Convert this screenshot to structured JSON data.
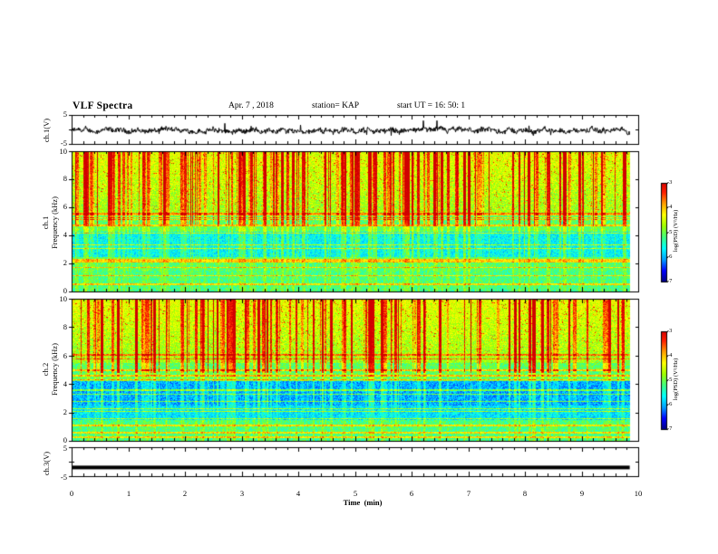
{
  "header": {
    "title": "VLF Spectra",
    "date": "Apr. 7 , 2018",
    "station": "station= KAP",
    "start_ut": "start  UT =   16: 50: 1"
  },
  "chart_data": [
    {
      "type": "line",
      "name": "ch.1 waveform",
      "ylabel": "ch.1(V)",
      "ylim": [
        -5,
        5
      ],
      "yticks": [
        "5",
        "-5"
      ],
      "xlim": [
        0,
        10
      ],
      "x_end": 9.85,
      "baseline": -0.4,
      "amplitude": 1.4
    },
    {
      "type": "heatmap",
      "name": "ch.1 spectrogram",
      "ylabel_line1": "ch.1",
      "ylabel_line2": "Frequency (kHz)",
      "ylim": [
        0,
        10
      ],
      "yticks": [
        "0",
        "2",
        "4",
        "6",
        "8",
        "10"
      ],
      "xlim": [
        0,
        9.85
      ],
      "colorbar": {
        "label": "log(PSD) (V²/Hz)",
        "range": [
          -7,
          -3
        ],
        "ticks": [
          "-3",
          "-4",
          "-5",
          "-6",
          "-7"
        ]
      },
      "colormap": [
        "#000080",
        "#0000ff",
        "#00a0ff",
        "#00ffff",
        "#40ff80",
        "#a0ff00",
        "#ffff00",
        "#ffa000",
        "#ff2000",
        "#d00000",
        "#ffffff"
      ]
    },
    {
      "type": "heatmap",
      "name": "ch.2 spectrogram",
      "ylabel_line1": "ch.2",
      "ylabel_line2": "Frequency (kHz)",
      "ylim": [
        0,
        10
      ],
      "yticks": [
        "0",
        "2",
        "4",
        "6",
        "8",
        "10"
      ],
      "xlim": [
        0,
        9.85
      ],
      "colorbar": {
        "label": "log(PSD) (V²/Hz)",
        "range": [
          -7,
          -3
        ],
        "ticks": [
          "-3",
          "-4",
          "-5",
          "-6",
          "-7"
        ]
      }
    },
    {
      "type": "line",
      "name": "ch.3 waveform",
      "ylabel": "ch.3(V)",
      "ylim": [
        -5,
        5
      ],
      "yticks": [
        "5",
        "-5"
      ],
      "xlim": [
        0,
        10
      ],
      "x_end": 9.85,
      "value": -2.0
    }
  ],
  "x_axis": {
    "label": "Time  (min)",
    "ticks": [
      "0",
      "1",
      "2",
      "3",
      "4",
      "5",
      "6",
      "7",
      "8",
      "9",
      "10"
    ]
  }
}
